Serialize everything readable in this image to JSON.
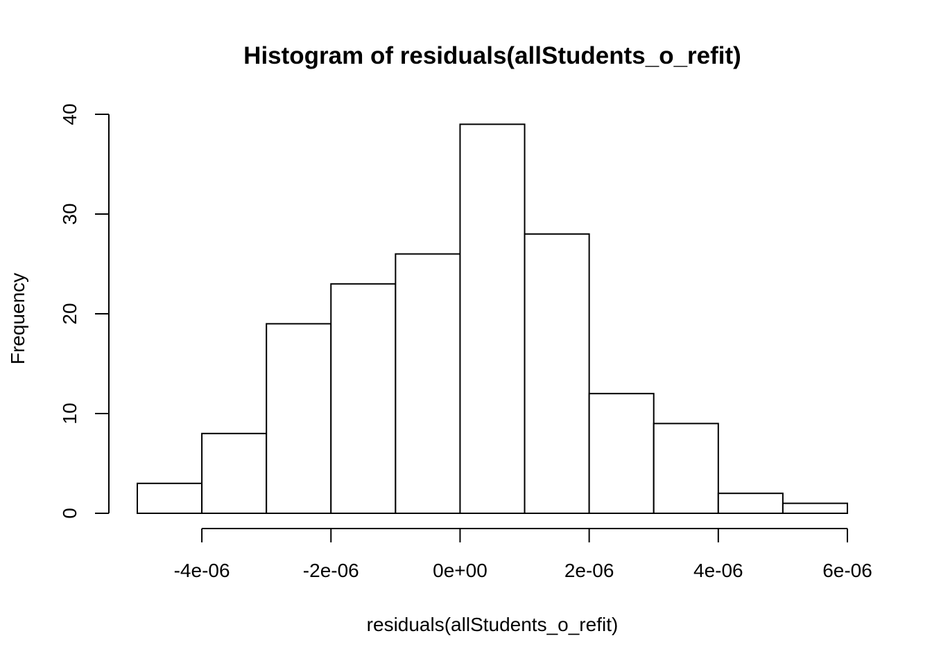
{
  "chart_data": {
    "type": "bar",
    "title": "Histogram of residuals(allStudents_o_refit)",
    "xlabel": "residuals(allStudents_o_refit)",
    "ylabel": "Frequency",
    "bins": [
      {
        "from": -5e-06,
        "to": -4e-06,
        "count": 3
      },
      {
        "from": -4e-06,
        "to": -3e-06,
        "count": 8
      },
      {
        "from": -3e-06,
        "to": -2e-06,
        "count": 19
      },
      {
        "from": -2e-06,
        "to": -1e-06,
        "count": 23
      },
      {
        "from": -1e-06,
        "to": 0,
        "count": 26
      },
      {
        "from": 0,
        "to": 1e-06,
        "count": 39
      },
      {
        "from": 1e-06,
        "to": 2e-06,
        "count": 28
      },
      {
        "from": 2e-06,
        "to": 3e-06,
        "count": 12
      },
      {
        "from": 3e-06,
        "to": 4e-06,
        "count": 9
      },
      {
        "from": 4e-06,
        "to": 5e-06,
        "count": 2
      },
      {
        "from": 5e-06,
        "to": 6e-06,
        "count": 1
      }
    ],
    "xlim": [
      -5e-06,
      6e-06
    ],
    "ylim": [
      0,
      40
    ],
    "x_ticks": [
      {
        "value": -4e-06,
        "label": "-4e-06"
      },
      {
        "value": -2e-06,
        "label": "-2e-06"
      },
      {
        "value": 0,
        "label": "0e+00"
      },
      {
        "value": 2e-06,
        "label": "2e-06"
      },
      {
        "value": 4e-06,
        "label": "4e-06"
      },
      {
        "value": 6e-06,
        "label": "6e-06"
      }
    ],
    "y_ticks": [
      {
        "value": 0,
        "label": "0"
      },
      {
        "value": 10,
        "label": "10"
      },
      {
        "value": 20,
        "label": "20"
      },
      {
        "value": 30,
        "label": "30"
      },
      {
        "value": 40,
        "label": "40"
      }
    ],
    "grid": false,
    "legend": "none",
    "colors": {
      "bar_fill": "#ffffff",
      "bar_stroke": "#000000"
    }
  }
}
